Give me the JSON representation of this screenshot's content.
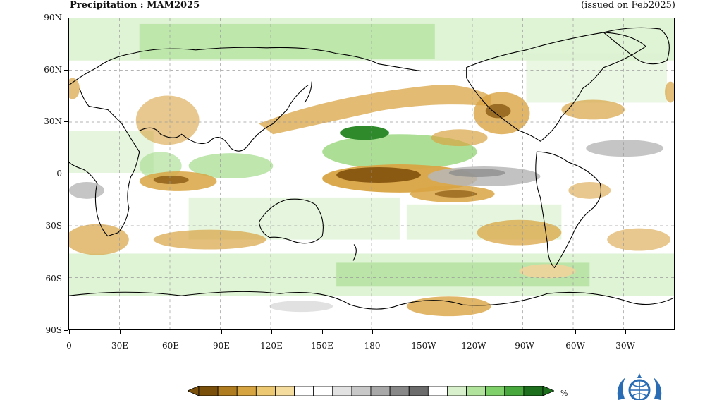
{
  "header": {
    "title": "Precipitation : MAM2025",
    "issued": "(issued on Feb2025)"
  },
  "axes": {
    "lat_labels": [
      "90N",
      "60N",
      "30N",
      "0",
      "30S",
      "60S",
      "90S"
    ],
    "lon_labels": [
      "0",
      "30E",
      "60E",
      "90E",
      "120E",
      "150E",
      "180",
      "150W",
      "120W",
      "90W",
      "60W",
      "30W"
    ]
  },
  "legend": {
    "unit": "%",
    "colors": [
      "#7a4f0a",
      "#b07c20",
      "#d6a441",
      "#edc872",
      "#f4dc9f",
      "#ffffff",
      "#ffffff",
      "#e2e2e2",
      "#c8c8c8",
      "#a8a8a8",
      "#888888",
      "#6c6c6c",
      "#ffffff",
      "#d8f0cc",
      "#b2e39c",
      "#7fcf6a",
      "#48a83e",
      "#1d6e1d"
    ]
  },
  "map": {
    "colors": {
      "dry_strong": "#8a5a12",
      "dry": "#d9a443",
      "dry_light": "#f0d49a",
      "wet_light": "#dcf2d0",
      "wet": "#a3dc8a",
      "wet_strong": "#2f8a2c",
      "grey_light": "#dedede",
      "grey": "#b7b7b7",
      "grey_dark": "#8f8f8f",
      "land_line": "#000000",
      "grid": "#9a9a9a"
    },
    "logo": "wmo-emblem-icon"
  }
}
